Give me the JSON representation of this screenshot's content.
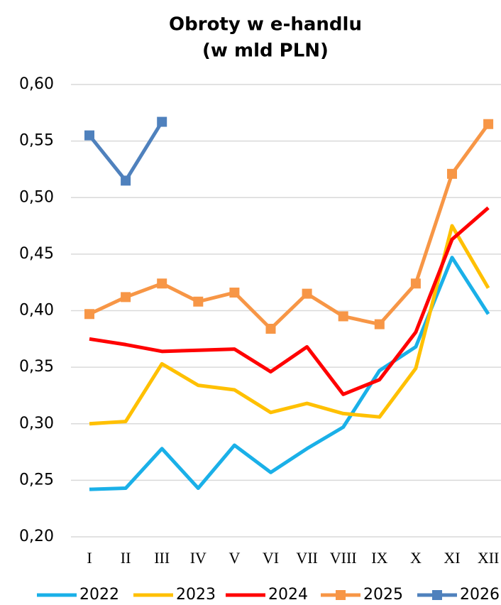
{
  "chart_data": {
    "type": "line",
    "title": [
      "Obroty w e-handlu",
      "(w mld PLN)"
    ],
    "categories": [
      "I",
      "II",
      "III",
      "IV",
      "V",
      "VI",
      "VII",
      "VIII",
      "IX",
      "X",
      "XI",
      "XII"
    ],
    "series": [
      {
        "name": "2022",
        "color": "#1ab0e8",
        "values": [
          0.242,
          0.243,
          0.278,
          0.243,
          0.281,
          0.257,
          0.278,
          0.297,
          0.347,
          0.368,
          0.447,
          0.397
        ]
      },
      {
        "name": "2023",
        "color": "#ffc000",
        "values": [
          0.3,
          0.302,
          0.353,
          0.334,
          0.33,
          0.31,
          0.318,
          0.309,
          0.306,
          0.349,
          0.475,
          0.42
        ]
      },
      {
        "name": "2024",
        "color": "#ff0000",
        "values": [
          0.375,
          0.37,
          0.364,
          0.365,
          0.366,
          0.346,
          0.368,
          0.326,
          0.339,
          0.381,
          0.463,
          0.491
        ]
      },
      {
        "name": "2025",
        "color": "#f79646",
        "marker": "square",
        "values": [
          0.397,
          0.412,
          0.424,
          0.408,
          0.416,
          0.384,
          0.415,
          0.395,
          0.388,
          0.424,
          0.521,
          0.565
        ]
      },
      {
        "name": "2026",
        "color": "#4f81bd",
        "marker": "square",
        "values": [
          0.555,
          0.515,
          0.567,
          null,
          null,
          null,
          null,
          null,
          null,
          null,
          null,
          null
        ]
      }
    ],
    "ylim": [
      0.2,
      0.6
    ],
    "yticks": [
      {
        "value": 0.2,
        "label": "0,20"
      },
      {
        "value": 0.25,
        "label": "0,25"
      },
      {
        "value": 0.3,
        "label": "0,30"
      },
      {
        "value": 0.35,
        "label": "0,35"
      },
      {
        "value": 0.4,
        "label": "0,40"
      },
      {
        "value": 0.45,
        "label": "0,45"
      },
      {
        "value": 0.5,
        "label": "0,50"
      },
      {
        "value": 0.55,
        "label": "0,55"
      },
      {
        "value": 0.6,
        "label": "0,60"
      }
    ],
    "grid": true,
    "legend": "bottom"
  }
}
